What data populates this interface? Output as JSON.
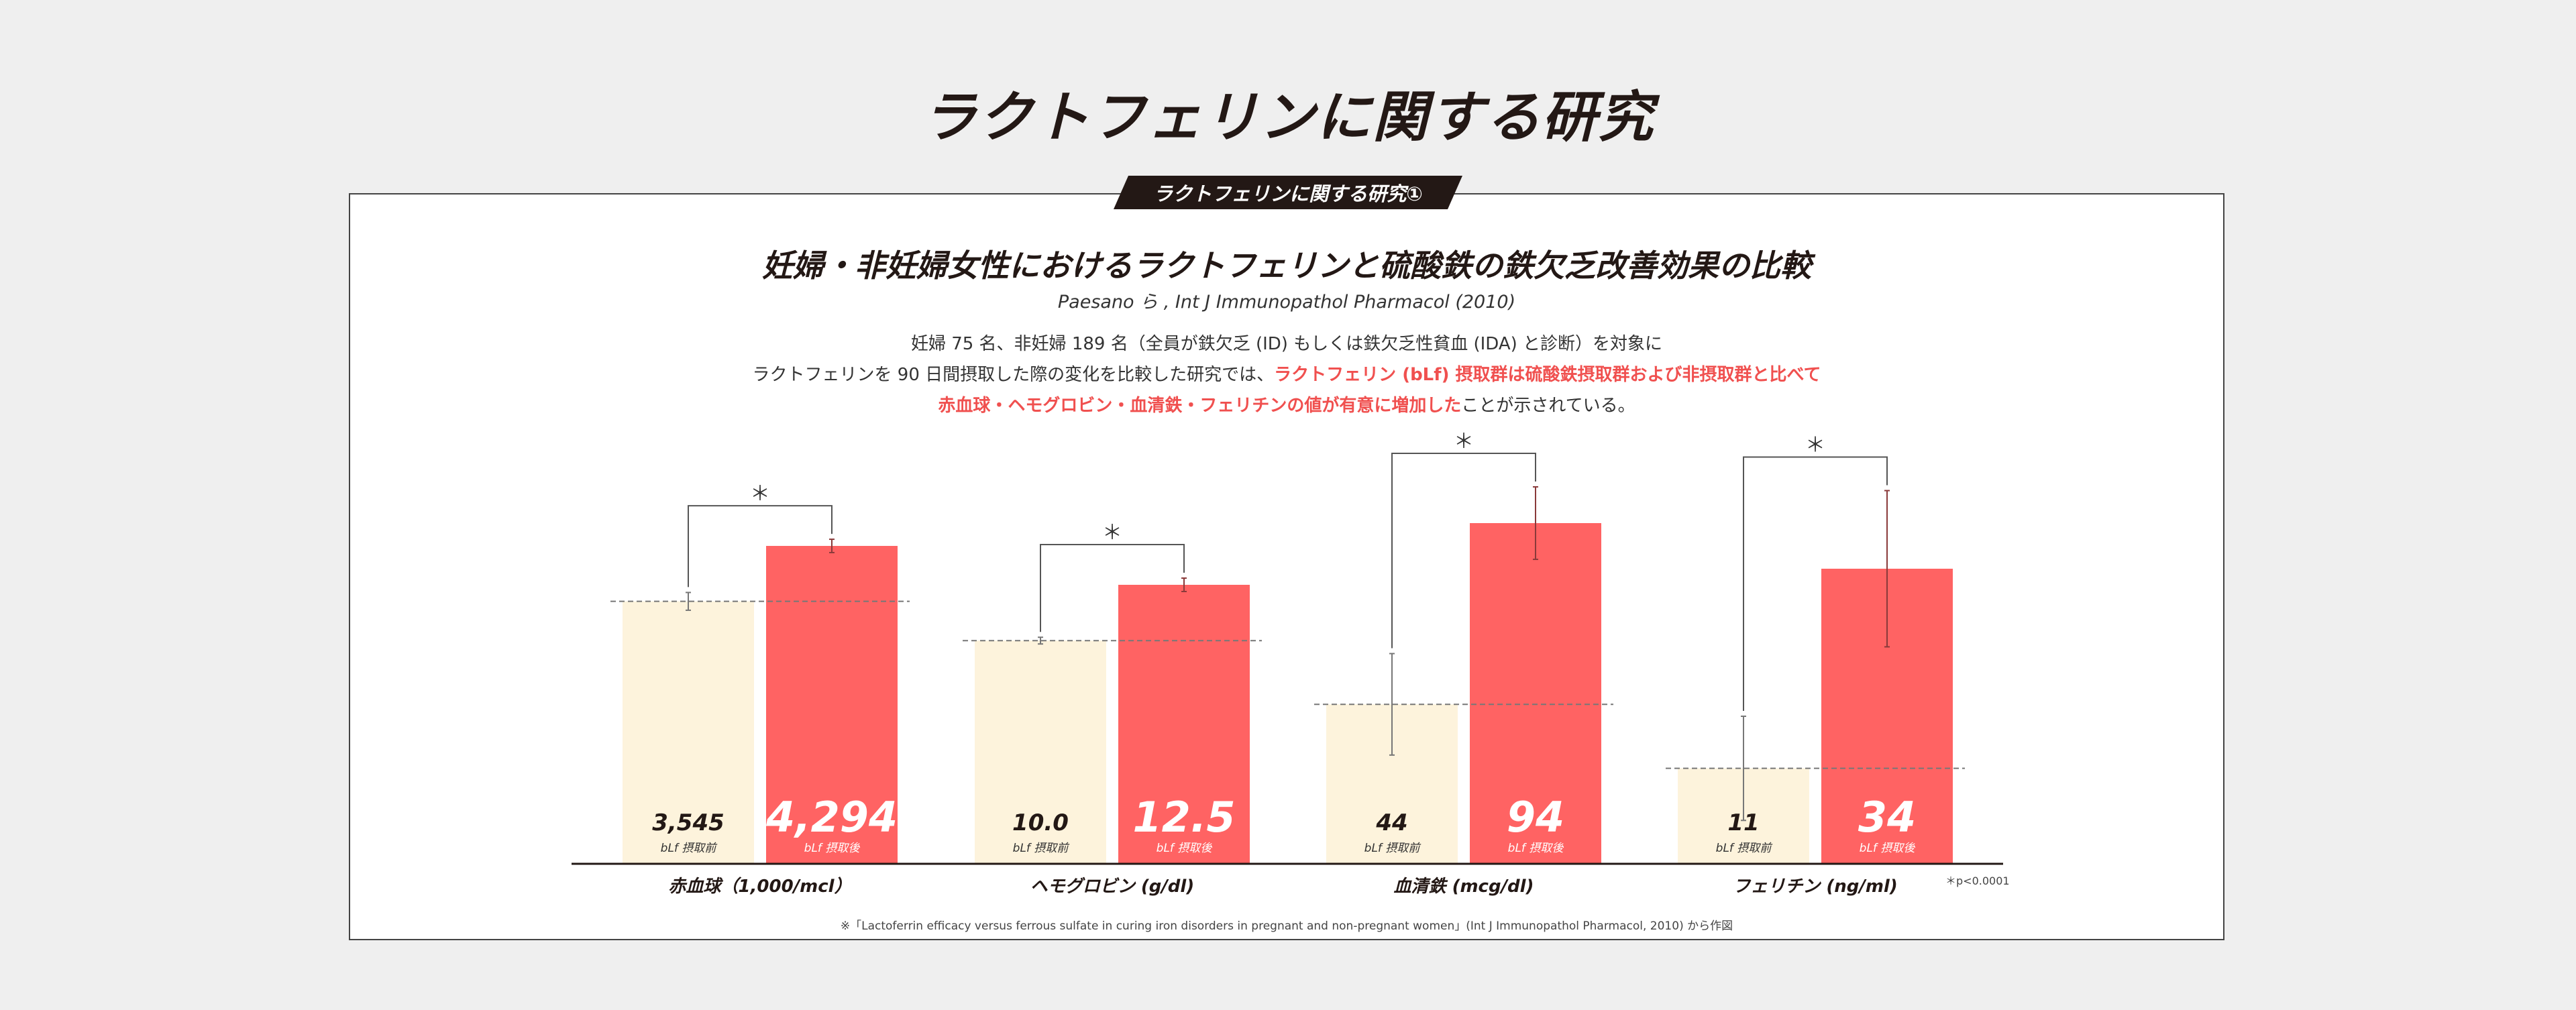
{
  "page": {
    "title": "ラクトフェリンに関する研究",
    "panel_label": "ラクトフェリンに関する研究①",
    "study_title": "妊婦・非妊婦女性におけるラクトフェリンと硫酸鉄の鉄欠乏改善効果の比較",
    "citation": "Paesano ら , Int J Immunopathol Pharmacol (2010)",
    "desc_line1": "妊婦 75 名、非妊婦 189 名（全員が鉄欠乏 (ID) もしくは鉄欠乏性貧血 (IDA) と診断）を対象に",
    "desc_line2_plain": "ラクトフェリンを 90 日間摂取した際の変化を比較した研究では、",
    "desc_line2_highlight": "ラクトフェリン (bLf) 摂取群は硫酸鉄摂取群および非摂取群と比べて",
    "desc_line3_highlight": "赤血球・ヘモグロビン・血清鉄・フェリチンの値が有意に増加した",
    "desc_line3_plain": "ことが示されている。",
    "footnote": "※「Lactoferrin efficacy versus ferrous sulfate in curing iron disorders in pregnant and non-pregnant women」(Int J Immunopathol Pharmacol, 2010) から作図",
    "significance_note": "＊p<0.0001"
  },
  "chart_data": {
    "type": "bar",
    "series": [
      {
        "name": "bLf 摂取前",
        "color": "#fdf3dc"
      },
      {
        "name": "bLf 摂取後",
        "color": "#ff6363"
      }
    ],
    "significance_marker": "＊",
    "groups": [
      {
        "label": "赤血球（1,000/mcl）",
        "before": 3545,
        "after": 4294,
        "before_label": "3,545",
        "after_label": "4,294",
        "before_err": 120,
        "after_err": 90
      },
      {
        "label": "ヘモグロビン (g/dl)",
        "before": 10.0,
        "after": 12.5,
        "before_label": "10.0",
        "after_label": "12.5",
        "before_err": 0.15,
        "after_err": 0.3
      },
      {
        "label": "血清鉄 (mcg/dl)",
        "before": 44,
        "after": 94,
        "before_label": "44",
        "after_label": "94",
        "before_err": 14,
        "after_err": 10
      },
      {
        "label": "フェリチン (ng/ml)",
        "before": 11,
        "after": 34,
        "before_label": "11",
        "after_label": "34",
        "before_err": 6,
        "after_err": 9
      }
    ]
  }
}
